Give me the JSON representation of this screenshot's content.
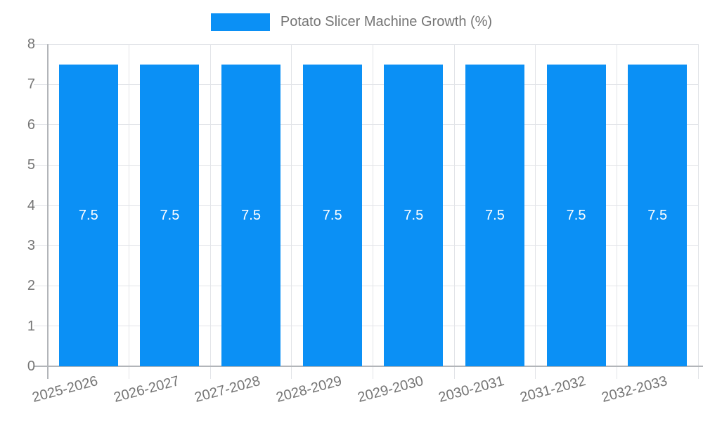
{
  "chart_data": {
    "type": "bar",
    "title": "",
    "legend_position": "top",
    "categories": [
      "2025-2026",
      "2026-2027",
      "2027-2028",
      "2028-2029",
      "2029-2030",
      "2030-2031",
      "2031-2032",
      "2032-2033"
    ],
    "series": [
      {
        "name": "Potato Slicer Machine Growth (%)",
        "values": [
          7.5,
          7.5,
          7.5,
          7.5,
          7.5,
          7.5,
          7.5,
          7.5
        ]
      }
    ],
    "data_labels": [
      "7.5",
      "7.5",
      "7.5",
      "7.5",
      "7.5",
      "7.5",
      "7.5",
      "7.5"
    ],
    "xlabel": "",
    "ylabel": "",
    "ylim": [
      0,
      8
    ],
    "yticks": [
      "0",
      "1",
      "2",
      "3",
      "4",
      "5",
      "6",
      "7",
      "8"
    ],
    "grid": true,
    "colors": {
      "bar": "#0b90f5",
      "grid": "#e2e4e8",
      "axis": "#b2b5b9",
      "tick_text": "#757575",
      "value_text": "#ffffff",
      "background": "#ffffff"
    }
  }
}
